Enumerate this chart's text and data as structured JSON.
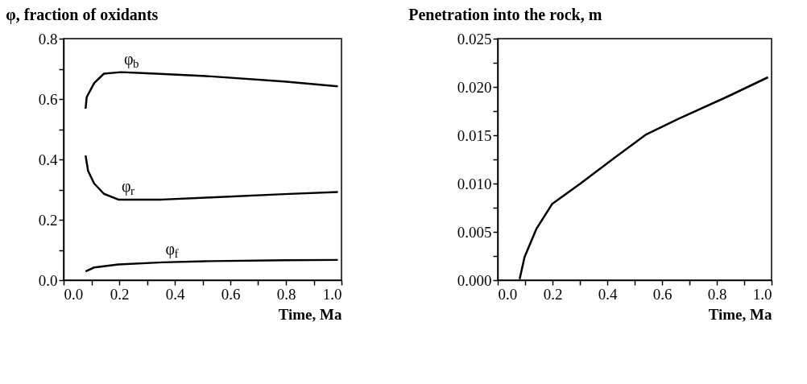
{
  "chart_data": [
    {
      "type": "line",
      "title": "φ, fraction of oxidants",
      "xlabel": "Time, Ma",
      "xlim": [
        0,
        1
      ],
      "ylim": [
        0,
        0.8
      ],
      "xticks": [
        {
          "value": 0,
          "label": "0.0"
        },
        {
          "value": 0.1,
          "label": null
        },
        {
          "value": 0.2,
          "label": "0.2"
        },
        {
          "value": 0.3,
          "label": null
        },
        {
          "value": 0.4,
          "label": "0.4"
        },
        {
          "value": 0.5,
          "label": null
        },
        {
          "value": 0.6,
          "label": "0.6"
        },
        {
          "value": 0.7,
          "label": null
        },
        {
          "value": 0.8,
          "label": "0.8"
        },
        {
          "value": 0.9,
          "label": null
        },
        {
          "value": 1,
          "label": "1.0"
        }
      ],
      "yticks": [
        {
          "value": 0,
          "label": "0.0"
        },
        {
          "value": 0.1,
          "label": null
        },
        {
          "value": 0.2,
          "label": "0.2"
        },
        {
          "value": 0.3,
          "label": null
        },
        {
          "value": 0.4,
          "label": "0.4"
        },
        {
          "value": 0.5,
          "label": null
        },
        {
          "value": 0.6,
          "label": "0.6"
        },
        {
          "value": 0.7,
          "label": null
        },
        {
          "value": 0.8,
          "label": "0.8"
        }
      ],
      "series": [
        {
          "name": "φ$_{b}$",
          "color": "#000000",
          "x": [
            0.079,
            0.083,
            0.11,
            0.145,
            0.206,
            0.285,
            0.53,
            0.794,
            0.987
          ],
          "values": [
            0.568,
            0.606,
            0.653,
            0.684,
            0.689,
            0.686,
            0.675,
            0.658,
            0.642
          ]
        },
        {
          "name": "φ$_{r}$",
          "color": "#000000",
          "x": [
            0.079,
            0.088,
            0.11,
            0.145,
            0.197,
            0.355,
            0.53,
            0.794,
            0.987
          ],
          "values": [
            0.413,
            0.362,
            0.32,
            0.286,
            0.267,
            0.267,
            0.274,
            0.285,
            0.292
          ]
        },
        {
          "name": "φ$_{f}$",
          "color": "#000000",
          "x": [
            0.079,
            0.11,
            0.197,
            0.355,
            0.53,
            0.794,
            0.987
          ],
          "values": [
            0.029,
            0.042,
            0.052,
            0.059,
            0.063,
            0.066,
            0.067
          ]
        }
      ]
    },
    {
      "type": "line",
      "title": "Penetration into the rock, m",
      "xlabel": "Time, Ma",
      "xlim": [
        0,
        1
      ],
      "ylim": [
        0,
        0.025
      ],
      "xticks": [
        {
          "value": 0,
          "label": "0.0"
        },
        {
          "value": 0.1,
          "label": null
        },
        {
          "value": 0.2,
          "label": "0.2"
        },
        {
          "value": 0.3,
          "label": null
        },
        {
          "value": 0.4,
          "label": "0.4"
        },
        {
          "value": 0.5,
          "label": null
        },
        {
          "value": 0.6,
          "label": "0.6"
        },
        {
          "value": 0.7,
          "label": null
        },
        {
          "value": 0.8,
          "label": "0.8"
        },
        {
          "value": 0.9,
          "label": null
        },
        {
          "value": 1,
          "label": "1.0"
        }
      ],
      "yticks": [
        {
          "value": 0,
          "label": "0.000"
        },
        {
          "value": 0.0025,
          "label": null
        },
        {
          "value": 0.005,
          "label": "0.005"
        },
        {
          "value": 0.0075,
          "label": null
        },
        {
          "value": 0.01,
          "label": "0.010"
        },
        {
          "value": 0.0125,
          "label": null
        },
        {
          "value": 0.015,
          "label": "0.015"
        },
        {
          "value": 0.0175,
          "label": null
        },
        {
          "value": 0.02,
          "label": "0.020"
        },
        {
          "value": 0.0225,
          "label": null
        },
        {
          "value": 0.025,
          "label": "0.025"
        }
      ],
      "series": [
        {
          "color": "#000000",
          "x": [
            0.08,
            0.098,
            0.141,
            0.199,
            0.302,
            0.409,
            0.543,
            0.66,
            0.839,
            0.987
          ],
          "values": [
            0.0001,
            0.0024,
            0.0053,
            0.0079,
            0.01,
            0.0123,
            0.0151,
            0.0167,
            0.019,
            0.021
          ]
        }
      ]
    }
  ]
}
